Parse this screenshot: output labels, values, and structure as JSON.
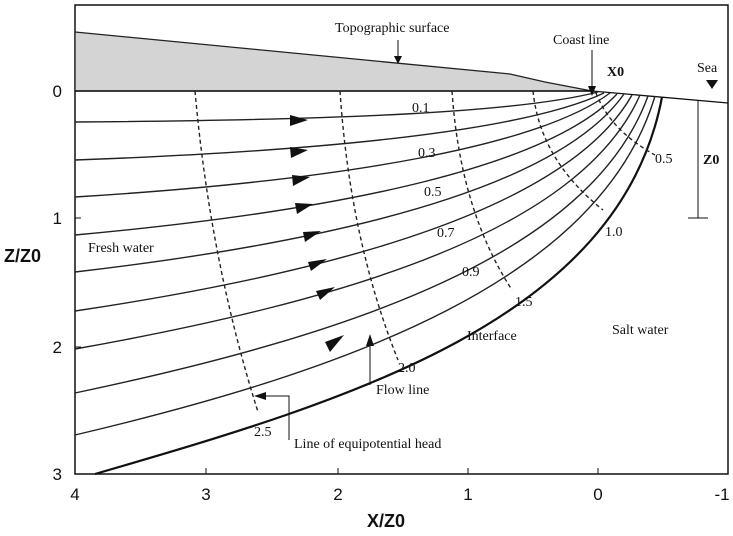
{
  "x_axis": {
    "label": "X/Z0",
    "ticks": [
      "4",
      "3",
      "2",
      "1",
      "0",
      "-1"
    ]
  },
  "y_axis": {
    "label": "Z/Z0",
    "ticks": [
      "0",
      "1",
      "2",
      "3"
    ]
  },
  "labels": {
    "topographic_surface": "Topographic surface",
    "coast_line": "Coast line",
    "x0": "X0",
    "sea": "Sea",
    "z0": "Z0",
    "fresh_water": "Fresh water",
    "salt_water": "Salt water",
    "interface": "Interface",
    "flow_line": "Flow line",
    "equipotential": "Line of equipotential head"
  },
  "flow_line_labels": [
    "0.1",
    "0.3",
    "0.5",
    "0.7",
    "0.9"
  ],
  "equipotential_labels": [
    "0.5",
    "1.0",
    "1.5",
    "2.0",
    "2.5"
  ]
}
